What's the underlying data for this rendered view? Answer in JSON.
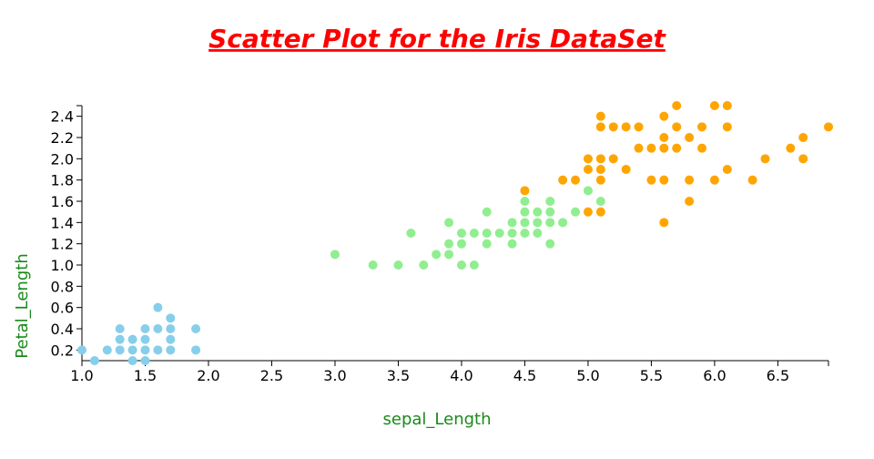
{
  "chart_data": {
    "type": "scatter",
    "title": "Scatter Plot for the Iris DataSet",
    "x_label": "sepal_Length",
    "y_label": "Petal_Length",
    "xlim": [
      1.0,
      6.9
    ],
    "ylim": [
      0.1,
      2.5
    ],
    "xticks": [
      {
        "value": 1,
        "label": "1.0"
      },
      1.5,
      {
        "value": 2,
        "label": "2.0"
      },
      2.5,
      {
        "value": 3,
        "label": "3.0"
      },
      3.5,
      {
        "value": 4,
        "label": "4.0"
      },
      4.5,
      {
        "value": 5,
        "label": "5.0"
      },
      5.5,
      {
        "value": 6,
        "label": "6.0"
      },
      6.5
    ],
    "yticks": [
      0.2,
      0.4,
      0.6,
      0.8,
      {
        "value": 1,
        "label": "1.0"
      },
      1.2,
      1.4,
      1.6,
      1.8,
      {
        "value": 2,
        "label": "2.0"
      },
      2.2,
      2.4
    ],
    "series": [
      {
        "color": "#87ceeb",
        "x": [
          1.0,
          1.1,
          1.2,
          1.3,
          1.3,
          1.3,
          1.4,
          1.4,
          1.4,
          1.5,
          1.5,
          1.5,
          1.5,
          1.6,
          1.6,
          1.6,
          1.7,
          1.7,
          1.7,
          1.7,
          1.9,
          1.9
        ],
        "values": [
          0.2,
          0.1,
          0.2,
          0.2,
          0.3,
          0.4,
          0.1,
          0.2,
          0.3,
          0.1,
          0.2,
          0.3,
          0.4,
          0.2,
          0.4,
          0.6,
          0.2,
          0.3,
          0.4,
          0.5,
          0.2,
          0.4
        ]
      },
      {
        "color": "#90ee90",
        "x": [
          3.0,
          3.3,
          3.5,
          3.6,
          3.7,
          3.8,
          3.9,
          3.9,
          3.9,
          4.0,
          4.0,
          4.0,
          4.1,
          4.1,
          4.2,
          4.2,
          4.2,
          4.3,
          4.4,
          4.4,
          4.4,
          4.5,
          4.5,
          4.5,
          4.5,
          4.6,
          4.6,
          4.6,
          4.7,
          4.7,
          4.7,
          4.7,
          4.8,
          4.9,
          5.0,
          5.1
        ],
        "values": [
          1.1,
          1.0,
          1.0,
          1.3,
          1.0,
          1.1,
          1.1,
          1.2,
          1.4,
          1.0,
          1.2,
          1.3,
          1.0,
          1.3,
          1.2,
          1.3,
          1.5,
          1.3,
          1.2,
          1.3,
          1.4,
          1.3,
          1.4,
          1.5,
          1.6,
          1.3,
          1.4,
          1.5,
          1.2,
          1.4,
          1.5,
          1.6,
          1.4,
          1.5,
          1.7,
          1.6
        ]
      },
      {
        "color": "#ffa500",
        "x": [
          4.5,
          4.8,
          4.9,
          5.0,
          5.0,
          5.0,
          5.1,
          5.1,
          5.1,
          5.1,
          5.1,
          5.1,
          5.2,
          5.2,
          5.3,
          5.3,
          5.4,
          5.4,
          5.5,
          5.5,
          5.6,
          5.6,
          5.6,
          5.6,
          5.6,
          5.7,
          5.7,
          5.7,
          5.8,
          5.8,
          5.8,
          5.9,
          5.9,
          6.0,
          6.0,
          6.1,
          6.1,
          6.1,
          6.3,
          6.4,
          6.6,
          6.7,
          6.7,
          6.9
        ],
        "values": [
          1.7,
          1.8,
          1.8,
          1.5,
          1.9,
          2.0,
          1.5,
          1.8,
          1.9,
          2.0,
          2.3,
          2.4,
          2.0,
          2.3,
          1.9,
          2.3,
          2.1,
          2.3,
          1.8,
          2.1,
          1.4,
          1.8,
          2.1,
          2.2,
          2.4,
          2.1,
          2.3,
          2.5,
          1.6,
          1.8,
          2.2,
          2.1,
          2.3,
          1.8,
          2.5,
          1.9,
          2.3,
          2.5,
          1.8,
          2.0,
          2.1,
          2.0,
          2.2,
          2.3
        ]
      }
    ]
  }
}
